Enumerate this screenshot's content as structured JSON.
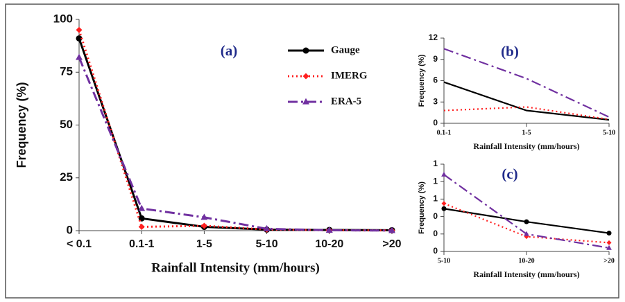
{
  "chart_data": [
    {
      "type": "line",
      "title": "(a)",
      "xlabel": "Rainfall Intensity (mm/hours)",
      "ylabel": "Frequency (%)",
      "categories": [
        "< 0.1",
        "0.1-1",
        "1-5",
        "5-10",
        "10-20",
        ">20"
      ],
      "ylim": [
        0,
        100
      ],
      "yticks": [
        0,
        25,
        50,
        75,
        100
      ],
      "legend": "upper right",
      "series": [
        {
          "name": "Gauge",
          "color": "#000000",
          "linestyle": "solid",
          "marker": "circle",
          "values": [
            91,
            5.8,
            1.8,
            0.49,
            0.34,
            0.21
          ]
        },
        {
          "name": "IMERG",
          "color": "#ff2020",
          "linestyle": "dotted",
          "marker": "diamond",
          "values": [
            95,
            1.8,
            2.3,
            0.55,
            0.17,
            0.1
          ]
        },
        {
          "name": "ERA-5",
          "color": "#7030a0",
          "linestyle": "dashdot",
          "marker": "triangle",
          "values": [
            82,
            10.5,
            6.3,
            0.88,
            0.2,
            0.04
          ]
        }
      ]
    },
    {
      "type": "line",
      "title": "(b)",
      "xlabel": "Rainfall Intensity (mm/hours)",
      "ylabel": "Frequency (%)",
      "categories": [
        "0.1-1",
        "1-5",
        "5-10"
      ],
      "ylim": [
        0,
        12
      ],
      "yticks": [
        0,
        3,
        6,
        9,
        12
      ],
      "series": [
        {
          "color": "#000000",
          "linestyle": "solid",
          "marker": "circle",
          "values": [
            5.8,
            1.8,
            0.49
          ]
        },
        {
          "color": "#ff2020",
          "linestyle": "dotted",
          "marker": "diamond",
          "values": [
            1.8,
            2.3,
            0.55
          ]
        },
        {
          "color": "#7030a0",
          "linestyle": "dashdot",
          "marker": "triangle",
          "values": [
            10.5,
            6.3,
            0.88
          ]
        }
      ]
    },
    {
      "type": "line",
      "title": "(c)",
      "xlabel": "Rainfall Intensity (mm/hours)",
      "ylabel": "Frequency (%)",
      "categories": [
        "5-10",
        "10-20",
        ">20"
      ],
      "ylim": [
        0,
        1
      ],
      "yticks": [
        0,
        {
          "value": 0.2,
          "label": "0"
        },
        {
          "value": 0.4,
          "label": "0"
        },
        {
          "value": 0.6,
          "label": "1"
        },
        {
          "value": 0.8,
          "label": "1"
        },
        1
      ],
      "series": [
        {
          "color": "#000000",
          "linestyle": "solid",
          "marker": "circle",
          "values": [
            0.49,
            0.34,
            0.21
          ]
        },
        {
          "color": "#ff2020",
          "linestyle": "dotted",
          "marker": "diamond",
          "values": [
            0.55,
            0.17,
            0.1
          ]
        },
        {
          "color": "#7030a0",
          "linestyle": "dashdot",
          "marker": "triangle",
          "values": [
            0.88,
            0.2,
            0.04
          ]
        }
      ]
    }
  ]
}
